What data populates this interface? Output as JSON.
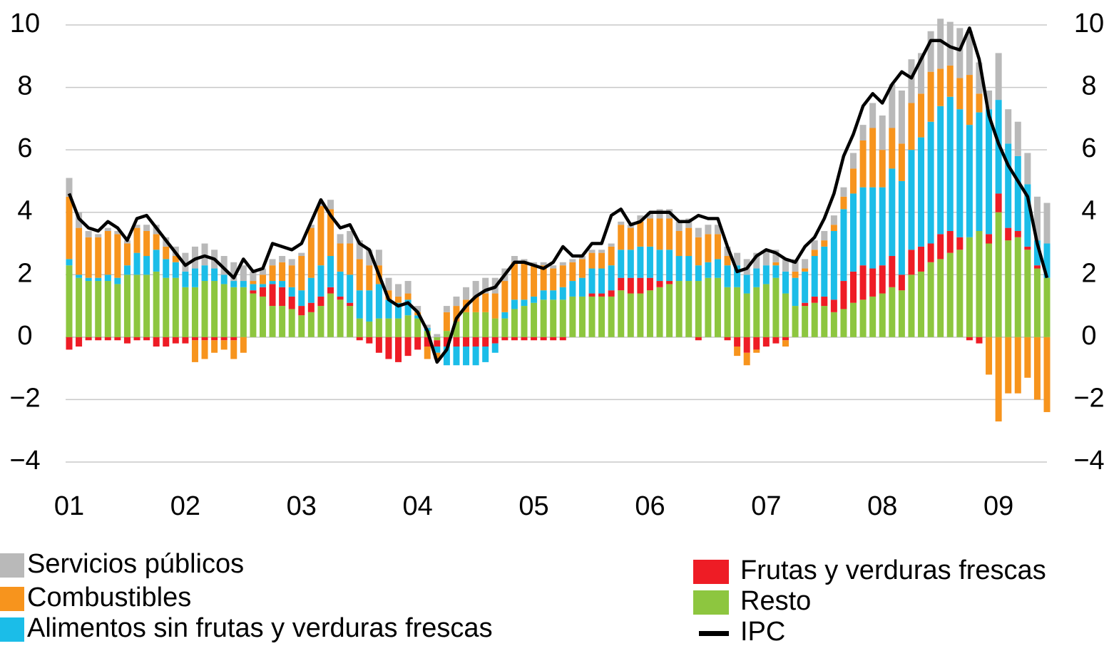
{
  "chart_data": {
    "type": "bar",
    "stacked": true,
    "categories": [
      "01",
      null,
      null,
      null,
      null,
      null,
      null,
      null,
      null,
      null,
      null,
      null,
      "02",
      null,
      null,
      null,
      null,
      null,
      null,
      null,
      null,
      null,
      null,
      null,
      "03",
      null,
      null,
      null,
      null,
      null,
      null,
      null,
      null,
      null,
      null,
      null,
      "04",
      null,
      null,
      null,
      null,
      null,
      null,
      null,
      null,
      null,
      null,
      null,
      "05",
      null,
      null,
      null,
      null,
      null,
      null,
      null,
      null,
      null,
      null,
      null,
      "06",
      null,
      null,
      null,
      null,
      null,
      null,
      null,
      null,
      null,
      null,
      null,
      "07",
      null,
      null,
      null,
      null,
      null,
      null,
      null,
      null,
      null,
      null,
      null,
      "08",
      null,
      null,
      null,
      null,
      null,
      null,
      null,
      null,
      null,
      null,
      null,
      "09",
      null,
      null,
      null,
      null,
      null
    ],
    "ylim": [
      -4,
      10
    ],
    "yticks": [
      {
        "value": -4,
        "label": "−4"
      },
      {
        "value": -2,
        "label": "−2"
      },
      0,
      2,
      4,
      6,
      8,
      10
    ],
    "y2lim": [
      -4,
      10
    ],
    "y2ticks": [
      {
        "value": -4,
        "label": "−4"
      },
      {
        "value": -2,
        "label": "−2"
      },
      0,
      2,
      4,
      6,
      8,
      10
    ],
    "grid": true,
    "series": [
      {
        "name": "Servicios públicos",
        "color": "#b9b9b9",
        "values": [
          0.6,
          0.5,
          0.2,
          0.1,
          0.1,
          0.1,
          0.1,
          0.1,
          0.2,
          0.3,
          0.3,
          0.3,
          0.6,
          0.7,
          0.7,
          0.6,
          0.6,
          0.6,
          0.5,
          0.3,
          0.2,
          0.2,
          0.2,
          0.2,
          0.1,
          0.1,
          0.1,
          0.3,
          0.3,
          0.4,
          0.6,
          0.5,
          0.5,
          0.4,
          0.4,
          0.4,
          0.2,
          0.1,
          0.1,
          0.2,
          0.3,
          0.4,
          0.5,
          0.5,
          0.5,
          0.4,
          0.2,
          0.1,
          0.1,
          0.1,
          0.1,
          0.1,
          0.1,
          0.1,
          0.1,
          0.1,
          0.1,
          0.1,
          0.1,
          0.2,
          0.2,
          0.3,
          0.3,
          0.3,
          0.3,
          0.3,
          0.3,
          0.3,
          0.3,
          0.4,
          0.5,
          0.5,
          0.5,
          0.4,
          0.4,
          0.4,
          0.3,
          0.3,
          0.3,
          0.3,
          0.3,
          0.5,
          0.5,
          0.8,
          1.1,
          1.4,
          1.7,
          1.4,
          1.3,
          1.3,
          1.6,
          1.4,
          1.6,
          1.4,
          1.0,
          0.6,
          1.5,
          1.1,
          1.1,
          1.0,
          1.4,
          1.3
        ]
      },
      {
        "name": "Combustibles",
        "color": "#f7941d",
        "values": [
          2.0,
          1.5,
          1.3,
          1.3,
          1.4,
          1.4,
          0.7,
          0.8,
          0.8,
          0.5,
          0.4,
          0.2,
          0.0,
          -0.7,
          -0.6,
          -0.4,
          -0.3,
          -0.6,
          -0.5,
          0.1,
          0.3,
          0.5,
          0.6,
          0.7,
          1.1,
          1.6,
          1.9,
          1.5,
          0.9,
          1.0,
          1.0,
          0.8,
          0.6,
          0.3,
          0.2,
          0.2,
          0.1,
          -0.4,
          -0.2,
          0.6,
          0.5,
          0.4,
          0.5,
          0.6,
          0.8,
          1.0,
          1.2,
          1.2,
          1.0,
          0.8,
          0.7,
          0.7,
          0.6,
          0.6,
          0.5,
          0.5,
          0.6,
          0.8,
          0.7,
          0.8,
          0.9,
          1.0,
          1.0,
          0.8,
          0.9,
          0.9,
          0.9,
          0.8,
          0.3,
          -0.3,
          -0.4,
          -0.1,
          0.0,
          0.1,
          -0.2,
          0.2,
          0.1,
          0.2,
          0.2,
          0.2,
          0.4,
          0.8,
          1.5,
          1.9,
          1.2,
          1.3,
          1.2,
          1.5,
          1.4,
          1.6,
          1.2,
          1.0,
          1.0,
          1.6,
          0.6,
          -1.2,
          -2.7,
          -1.8,
          -1.8,
          -1.3,
          -2.0,
          -2.4
        ]
      },
      {
        "name": "Alimentos sin frutas y verduras frescas",
        "color": "#1bbde8",
        "values": [
          0.2,
          0.1,
          0.1,
          0.1,
          0.2,
          0.2,
          0.3,
          0.7,
          0.6,
          0.7,
          0.6,
          0.5,
          0.5,
          0.6,
          0.5,
          0.4,
          0.3,
          0.2,
          0.2,
          0.2,
          0.1,
          0.1,
          0.2,
          0.3,
          0.5,
          0.8,
          1.0,
          1.0,
          0.8,
          0.9,
          0.9,
          1.0,
          1.1,
          0.6,
          0.5,
          0.5,
          0.1,
          0.1,
          -0.2,
          -0.6,
          -0.6,
          -0.6,
          -0.6,
          -0.5,
          -0.3,
          0.2,
          0.3,
          0.2,
          0.2,
          0.3,
          0.3,
          0.4,
          0.5,
          0.6,
          0.8,
          0.8,
          0.8,
          0.9,
          0.9,
          1.0,
          1.0,
          1.0,
          1.0,
          0.8,
          0.8,
          0.5,
          0.5,
          0.6,
          0.7,
          0.7,
          0.6,
          0.6,
          0.6,
          0.4,
          0.7,
          0.9,
          1.0,
          1.3,
          1.6,
          2.2,
          2.3,
          2.5,
          2.5,
          2.6,
          2.5,
          2.8,
          3.0,
          3.2,
          3.5,
          3.9,
          4.1,
          4.3,
          4.1,
          3.6,
          3.8,
          4.0,
          3.0,
          2.7,
          2.4,
          2.0,
          0.8,
          1.1
        ]
      },
      {
        "name": "Frutas y verduras frescas",
        "color": "#ee1c25",
        "values": [
          -0.4,
          -0.3,
          -0.1,
          -0.1,
          -0.1,
          -0.1,
          -0.2,
          -0.1,
          -0.1,
          -0.3,
          -0.3,
          -0.2,
          -0.2,
          -0.1,
          -0.1,
          -0.1,
          -0.1,
          -0.1,
          0.0,
          0.1,
          0.3,
          0.7,
          0.6,
          0.4,
          0.3,
          0.3,
          0.3,
          0.2,
          0.1,
          0.1,
          -0.1,
          -0.2,
          -0.5,
          -0.7,
          -0.8,
          -0.6,
          -0.4,
          -0.3,
          -0.2,
          -0.3,
          -0.3,
          -0.3,
          -0.3,
          -0.3,
          -0.2,
          -0.1,
          -0.1,
          -0.1,
          -0.1,
          -0.1,
          -0.1,
          -0.1,
          0.0,
          0.0,
          0.1,
          0.1,
          0.2,
          0.4,
          0.5,
          0.5,
          0.4,
          0.2,
          0.1,
          0.0,
          0.0,
          -0.1,
          0.0,
          0.0,
          -0.1,
          -0.3,
          -0.5,
          -0.4,
          -0.3,
          -0.2,
          -0.1,
          0.0,
          0.1,
          0.2,
          0.3,
          0.4,
          0.9,
          1.0,
          1.1,
          0.9,
          0.9,
          1.0,
          0.5,
          0.8,
          0.8,
          0.6,
          0.8,
          0.7,
          0.4,
          -0.1,
          -0.2,
          0.3,
          0.6,
          0.4,
          0.2,
          0.1,
          0.1,
          0.0
        ]
      },
      {
        "name": "Resto",
        "color": "#8dc63f",
        "values": [
          2.3,
          1.9,
          1.8,
          1.8,
          1.8,
          1.7,
          2.0,
          2.0,
          2.0,
          2.1,
          1.9,
          1.9,
          1.6,
          1.6,
          1.8,
          1.8,
          1.7,
          1.6,
          1.6,
          1.4,
          1.3,
          1.0,
          1.0,
          0.9,
          0.7,
          0.8,
          1.0,
          1.4,
          1.2,
          1.0,
          0.6,
          0.5,
          0.6,
          0.6,
          0.6,
          0.7,
          0.6,
          0.2,
          -0.1,
          0.2,
          0.5,
          0.8,
          0.8,
          0.8,
          0.6,
          0.6,
          0.9,
          1.0,
          1.1,
          1.2,
          1.2,
          1.2,
          1.3,
          1.3,
          1.3,
          1.3,
          1.3,
          1.5,
          1.4,
          1.4,
          1.5,
          1.6,
          1.7,
          1.8,
          1.8,
          1.8,
          1.9,
          1.9,
          1.6,
          1.6,
          1.4,
          1.6,
          1.7,
          1.9,
          1.4,
          1.0,
          1.0,
          1.1,
          1.0,
          0.8,
          0.9,
          1.1,
          1.2,
          1.3,
          1.4,
          1.6,
          1.5,
          2.0,
          2.1,
          2.4,
          2.5,
          2.7,
          2.8,
          3.2,
          3.4,
          3.0,
          4.0,
          3.1,
          3.2,
          2.8,
          2.2,
          1.9
        ]
      },
      {
        "name": "IPC",
        "color": "#000000",
        "type": "line",
        "values": [
          4.6,
          3.8,
          3.5,
          3.4,
          3.7,
          3.5,
          3.1,
          3.8,
          3.9,
          3.5,
          3.1,
          2.7,
          2.3,
          2.5,
          2.6,
          2.5,
          2.2,
          1.9,
          2.5,
          2.1,
          2.2,
          3.0,
          2.9,
          2.8,
          3.0,
          3.7,
          4.4,
          3.9,
          3.5,
          3.6,
          3.0,
          2.8,
          2.0,
          1.2,
          1.0,
          1.1,
          0.8,
          0.2,
          -0.8,
          -0.4,
          0.6,
          1.0,
          1.3,
          1.5,
          1.6,
          2.0,
          2.4,
          2.4,
          2.3,
          2.2,
          2.4,
          2.9,
          2.6,
          2.6,
          3.0,
          3.0,
          3.9,
          4.1,
          3.6,
          3.7,
          4.0,
          4.0,
          4.0,
          3.7,
          3.7,
          3.9,
          3.8,
          3.8,
          2.9,
          2.1,
          2.2,
          2.6,
          2.8,
          2.7,
          2.5,
          2.4,
          2.9,
          3.2,
          3.8,
          4.6,
          5.8,
          6.5,
          7.4,
          7.8,
          7.5,
          8.1,
          8.5,
          8.3,
          8.9,
          9.5,
          9.5,
          9.3,
          9.2,
          9.9,
          8.9,
          7.1,
          6.2,
          5.5,
          5.0,
          4.5,
          3.0,
          1.9
        ]
      }
    ]
  }
}
